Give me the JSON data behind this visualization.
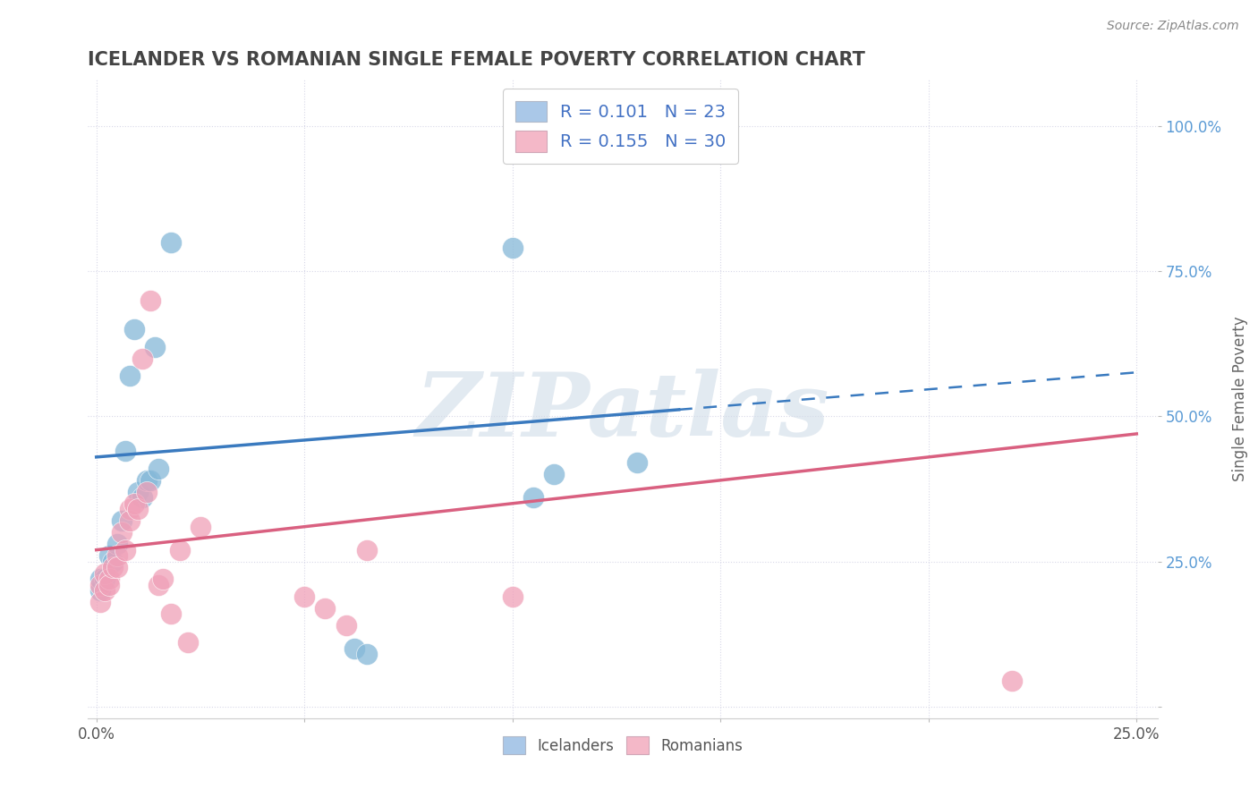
{
  "title": "ICELANDER VS ROMANIAN SINGLE FEMALE POVERTY CORRELATION CHART",
  "source": "Source: ZipAtlas.com",
  "ylabel": "Single Female Poverty",
  "watermark": "ZIPatlas",
  "xlim": [
    -0.002,
    0.255
  ],
  "ylim": [
    -0.02,
    1.08
  ],
  "x_ticks": [
    0.0,
    0.05,
    0.1,
    0.15,
    0.2,
    0.25
  ],
  "x_tick_labels": [
    "0.0%",
    "",
    "",
    "",
    "",
    "25.0%"
  ],
  "y_ticks": [
    0.0,
    0.25,
    0.5,
    0.75,
    1.0
  ],
  "y_tick_labels": [
    "",
    "25.0%",
    "50.0%",
    "75.0%",
    "100.0%"
  ],
  "icelander_color": "#85b8d8",
  "romanian_color": "#f0a0b8",
  "icelander_line_color": "#3a7abf",
  "romanian_line_color": "#d96080",
  "R_icelander": 0.101,
  "N_icelander": 23,
  "R_romanian": 0.155,
  "N_romanian": 30,
  "icelander_x": [
    0.001,
    0.001,
    0.002,
    0.003,
    0.004,
    0.005,
    0.006,
    0.007,
    0.008,
    0.009,
    0.01,
    0.011,
    0.012,
    0.013,
    0.014,
    0.015,
    0.018,
    0.062,
    0.065,
    0.1,
    0.11,
    0.105,
    0.13
  ],
  "icelander_y": [
    0.2,
    0.22,
    0.22,
    0.26,
    0.25,
    0.28,
    0.32,
    0.44,
    0.57,
    0.65,
    0.37,
    0.36,
    0.39,
    0.39,
    0.62,
    0.41,
    0.8,
    0.1,
    0.09,
    0.79,
    0.4,
    0.36,
    0.42
  ],
  "romanian_x": [
    0.001,
    0.001,
    0.002,
    0.002,
    0.003,
    0.003,
    0.004,
    0.005,
    0.005,
    0.006,
    0.007,
    0.008,
    0.008,
    0.009,
    0.01,
    0.011,
    0.012,
    0.013,
    0.015,
    0.016,
    0.018,
    0.02,
    0.022,
    0.025,
    0.05,
    0.055,
    0.06,
    0.065,
    0.1,
    0.22
  ],
  "romanian_y": [
    0.21,
    0.18,
    0.2,
    0.23,
    0.22,
    0.21,
    0.24,
    0.26,
    0.24,
    0.3,
    0.27,
    0.34,
    0.32,
    0.35,
    0.34,
    0.6,
    0.37,
    0.7,
    0.21,
    0.22,
    0.16,
    0.27,
    0.11,
    0.31,
    0.19,
    0.17,
    0.14,
    0.27,
    0.19,
    0.045
  ],
  "grid_color": "#d8d8e8",
  "background_color": "#ffffff",
  "title_color": "#444444",
  "axis_label_color": "#666666",
  "tick_label_color_x": "#555555",
  "tick_label_color_y": "#5b9bd5",
  "legend_box_color_ice": "#aac8e8",
  "legend_box_color_rom": "#f4b8c8",
  "ice_line_solid_end": 0.14,
  "rom_line_solid_end": 0.25
}
